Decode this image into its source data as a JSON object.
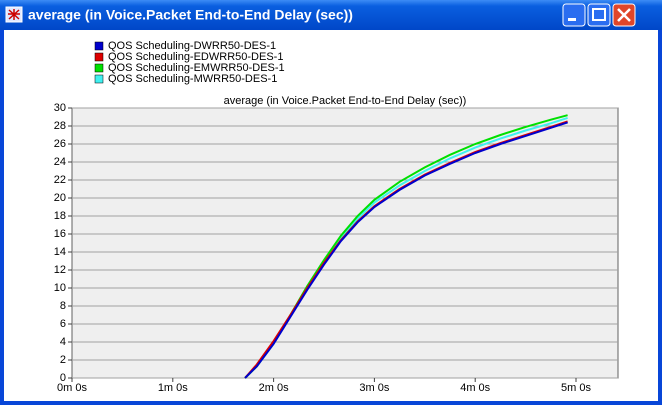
{
  "window": {
    "title": "average (in Voice.Packet End-to-End Delay (sec))"
  },
  "chart_data": {
    "type": "line",
    "title": "average (in Voice.Packet End-to-End Delay (sec))",
    "x": [
      103,
      110,
      120,
      130,
      140,
      150,
      160,
      170,
      180,
      195,
      210,
      225,
      240,
      255,
      270,
      285,
      295
    ],
    "series": [
      {
        "name": "QOS Scheduling-DWRR50-DES-1",
        "color": "#0000cc",
        "values": [
          0,
          1.3,
          3.8,
          6.8,
          9.8,
          12.6,
          15.2,
          17.3,
          19.0,
          20.9,
          22.5,
          23.8,
          25.0,
          26.0,
          26.9,
          27.8,
          28.4
        ]
      },
      {
        "name": "QOS Scheduling-EDWRR50-DES-1",
        "color": "#dd0000",
        "values": [
          0,
          1.5,
          4.1,
          7.0,
          10.0,
          12.8,
          15.3,
          17.4,
          19.1,
          21.0,
          22.6,
          23.9,
          25.1,
          26.1,
          27.0,
          27.9,
          28.5
        ]
      },
      {
        "name": "QOS Scheduling-EMWRR50-DES-1",
        "color": "#00e000",
        "values": [
          0,
          1.3,
          3.9,
          7.0,
          10.2,
          13.1,
          15.8,
          18.0,
          19.8,
          21.8,
          23.4,
          24.8,
          26.0,
          27.0,
          27.9,
          28.7,
          29.2
        ]
      },
      {
        "name": "QOS Scheduling-MWRR50-DES-1",
        "color": "#40f0f0",
        "values": [
          0,
          1.3,
          3.8,
          6.9,
          10.0,
          12.9,
          15.5,
          17.7,
          19.5,
          21.4,
          23.0,
          24.4,
          25.6,
          26.6,
          27.5,
          28.3,
          28.9
        ]
      }
    ],
    "xlim": [
      0,
      325
    ],
    "xticks": [
      {
        "value": 0,
        "label": "0m 0s"
      },
      {
        "value": 60,
        "label": "1m 0s"
      },
      {
        "value": 120,
        "label": "2m 0s"
      },
      {
        "value": 180,
        "label": "3m 0s"
      },
      {
        "value": 240,
        "label": "4m 0s"
      },
      {
        "value": 300,
        "label": "5m 0s"
      }
    ],
    "ylim": [
      0,
      30
    ],
    "yticks": [
      0,
      2,
      4,
      6,
      8,
      10,
      12,
      14,
      16,
      18,
      20,
      22,
      24,
      26,
      28,
      30
    ],
    "grid": true
  }
}
